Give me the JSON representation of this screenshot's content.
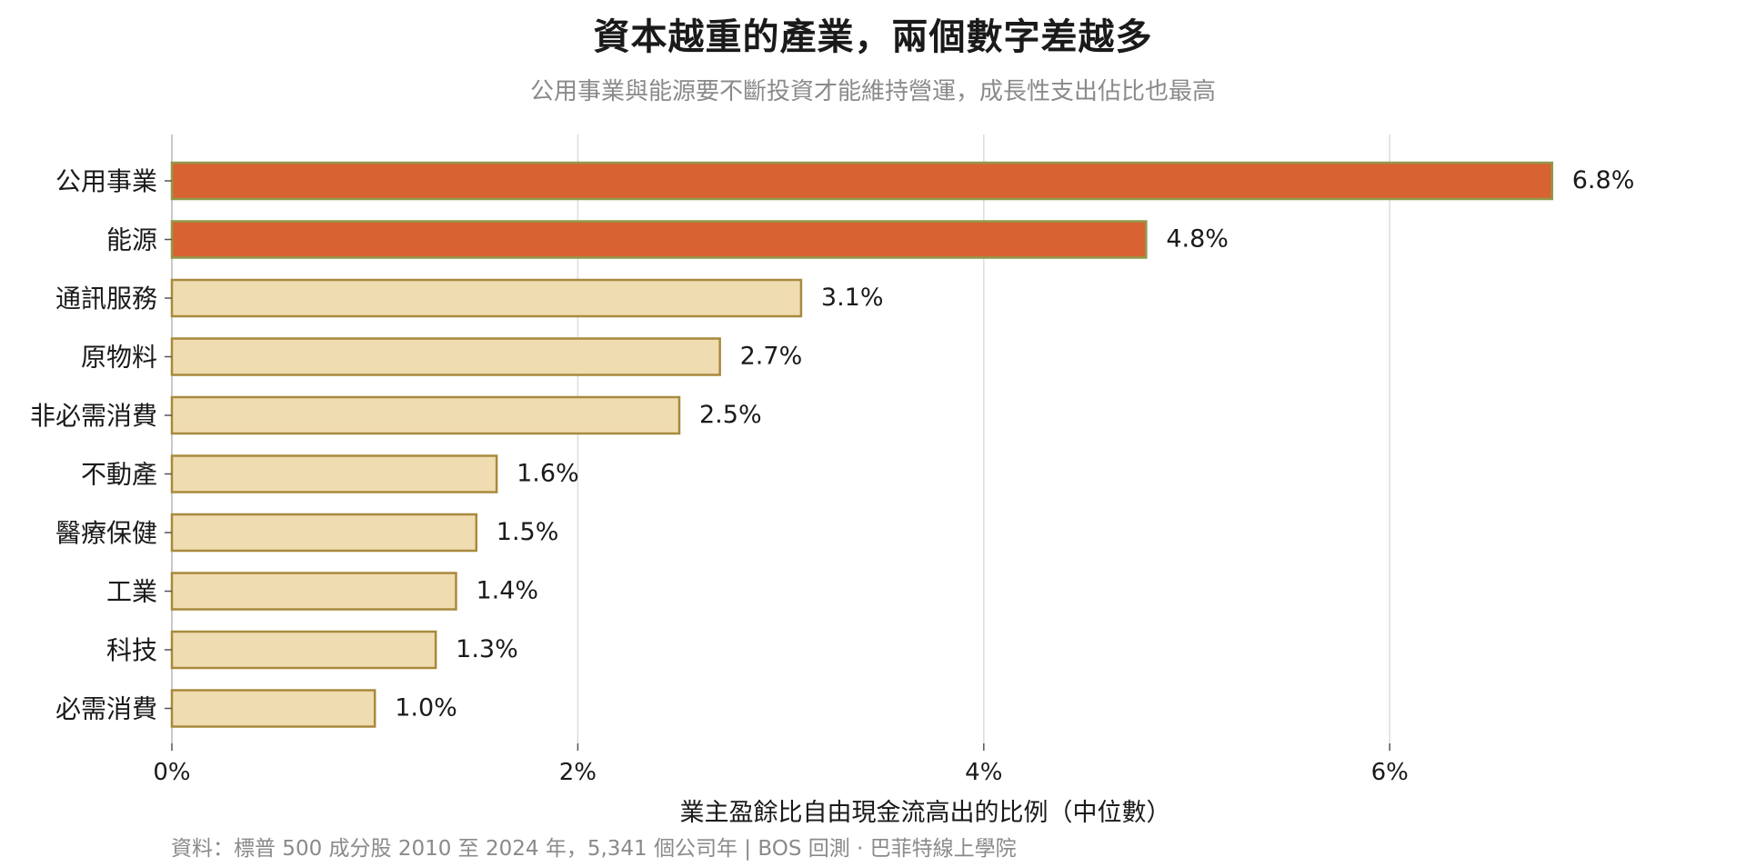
{
  "chart_data": {
    "type": "bar",
    "orientation": "horizontal",
    "title": "資本越重的產業，兩個數字差越多",
    "subtitle": "公用事業與能源要不斷投資才能維持營運，成長性支出佔比也最高",
    "xlabel": "業主盈餘比自由現金流高出的比例（中位數）",
    "ylabel": "",
    "source": "資料：標普 500 成分股 2010 至 2024 年，5,341 個公司年 | BOS 回測 ·  巴菲特線上學院",
    "categories": [
      "公用事業",
      "能源",
      "通訊服務",
      "原物料",
      "非必需消費",
      "不動產",
      "醫療保健",
      "工業",
      "科技",
      "必需消費"
    ],
    "values": [
      6.8,
      4.8,
      3.1,
      2.7,
      2.5,
      1.6,
      1.5,
      1.4,
      1.3,
      1.0
    ],
    "value_labels": [
      "6.8%",
      "4.8%",
      "3.1%",
      "2.7%",
      "2.5%",
      "1.6%",
      "1.5%",
      "1.4%",
      "1.3%",
      "1.0%"
    ],
    "highlighted": [
      true,
      true,
      false,
      false,
      false,
      false,
      false,
      false,
      false,
      false
    ],
    "xlim": [
      0,
      7.6
    ],
    "xticks": [
      0,
      2,
      4,
      6
    ],
    "xtick_labels": [
      "0%",
      "2%",
      "4%",
      "6%"
    ],
    "grid": "vertical",
    "legend": "none",
    "colors": {
      "highlight_fill": "#d96232",
      "highlight_stroke": "#8f9a4a",
      "normal_fill": "#f0dcb1",
      "normal_stroke": "#a88a3d",
      "grid": "#dddddd",
      "axis": "#c9c9c9",
      "text": "#1a1a1a",
      "muted_text": "#8a8a8a"
    }
  }
}
